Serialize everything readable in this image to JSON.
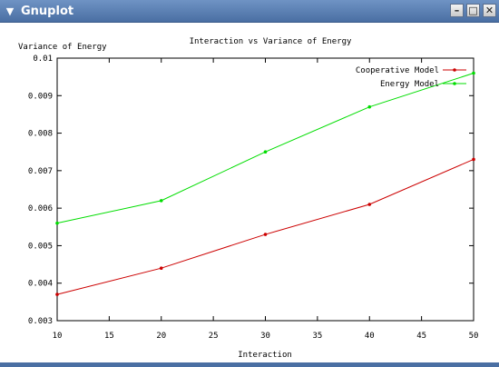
{
  "window": {
    "title": "Gnuplot",
    "menu_icon": "chevron-down-icon",
    "buttons": [
      {
        "name": "minimize",
        "glyph": "–"
      },
      {
        "name": "maximize",
        "glyph": "□"
      },
      {
        "name": "close",
        "glyph": "✕"
      }
    ]
  },
  "chart_data": {
    "type": "line",
    "title": "Interaction vs Variance of Energy",
    "xlabel": "Interaction",
    "ylabel": "Variance of Energy",
    "xlim": [
      10,
      50
    ],
    "ylim": [
      0.003,
      0.01
    ],
    "xticks": [
      10,
      15,
      20,
      25,
      30,
      35,
      40,
      45,
      50
    ],
    "yticks": [
      0.003,
      0.004,
      0.005,
      0.006,
      0.007,
      0.008,
      0.009,
      0.01
    ],
    "ytick_labels": [
      "0.003",
      "0.004",
      "0.005",
      "0.006",
      "0.007",
      "0.008",
      "0.009",
      "0.01"
    ],
    "grid": false,
    "legend_position": "top-right",
    "series": [
      {
        "name": "Cooperative Model",
        "color": "#cc0000",
        "x": [
          10,
          20,
          30,
          40,
          50
        ],
        "y": [
          0.0037,
          0.0044,
          0.0053,
          0.0061,
          0.0073
        ]
      },
      {
        "name": "Energy Model",
        "color": "#00dd00",
        "x": [
          10,
          20,
          30,
          40,
          50
        ],
        "y": [
          0.0056,
          0.0062,
          0.0075,
          0.0087,
          0.0096
        ]
      }
    ]
  }
}
